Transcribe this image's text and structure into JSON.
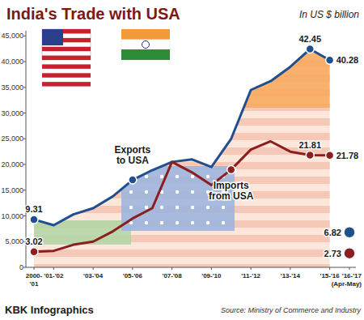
{
  "chart_data": {
    "type": "line",
    "title": "India's Trade with USA",
    "subtitle": "In US $ billion",
    "source": "Source: Ministry of Commerce and Industry",
    "credit": "KBK Infographics",
    "categories": [
      "2000-\n'01",
      "'01-'02",
      null,
      "'03-'04",
      null,
      "'05-'06",
      null,
      "'07-'08",
      null,
      "'09-'10",
      null,
      "'11-'12",
      null,
      "'13-'14",
      null,
      "'15-'16",
      "'16-'17\n(Apr-May)"
    ],
    "series": [
      {
        "name": "Exports to USA",
        "color": "#1f4f8f",
        "marker": "circle",
        "values": [
          9310,
          8200,
          10300,
          11500,
          13800,
          17000,
          18900,
          20500,
          21000,
          19500,
          25000,
          34500,
          36200,
          39000,
          42450,
          40280,
          6820
        ],
        "value_labels": [
          "9.31",
          null,
          null,
          null,
          null,
          null,
          null,
          null,
          null,
          null,
          null,
          null,
          null,
          null,
          "42.45",
          "40.28",
          "6.82"
        ]
      },
      {
        "name": "Imports from USA",
        "color": "#8b1e1e",
        "marker": "circle",
        "values": [
          3020,
          3200,
          4400,
          5000,
          7000,
          9500,
          11500,
          20500,
          18500,
          16000,
          19000,
          22900,
          24500,
          22500,
          21810,
          21780,
          2730
        ],
        "value_labels": [
          "3.02",
          null,
          null,
          null,
          null,
          null,
          null,
          null,
          null,
          null,
          null,
          null,
          null,
          null,
          "21.81",
          "21.78",
          "2.73"
        ]
      }
    ],
    "ylim": [
      0,
      46000
    ],
    "yticks": [
      0,
      {
        "value": 5000,
        "label": "5,000"
      },
      {
        "value": 10000,
        "label": "10,000"
      },
      {
        "value": 15000,
        "label": "15,000"
      },
      {
        "value": 20000,
        "label": "20,000"
      },
      {
        "value": 25000,
        "label": "25,000"
      },
      {
        "value": 30000,
        "label": "30,000"
      },
      {
        "value": 35000,
        "label": "35,000"
      },
      {
        "value": 40000,
        "label": "40,000"
      },
      {
        "value": 45000,
        "label": "45,000"
      }
    ],
    "grid": false
  }
}
